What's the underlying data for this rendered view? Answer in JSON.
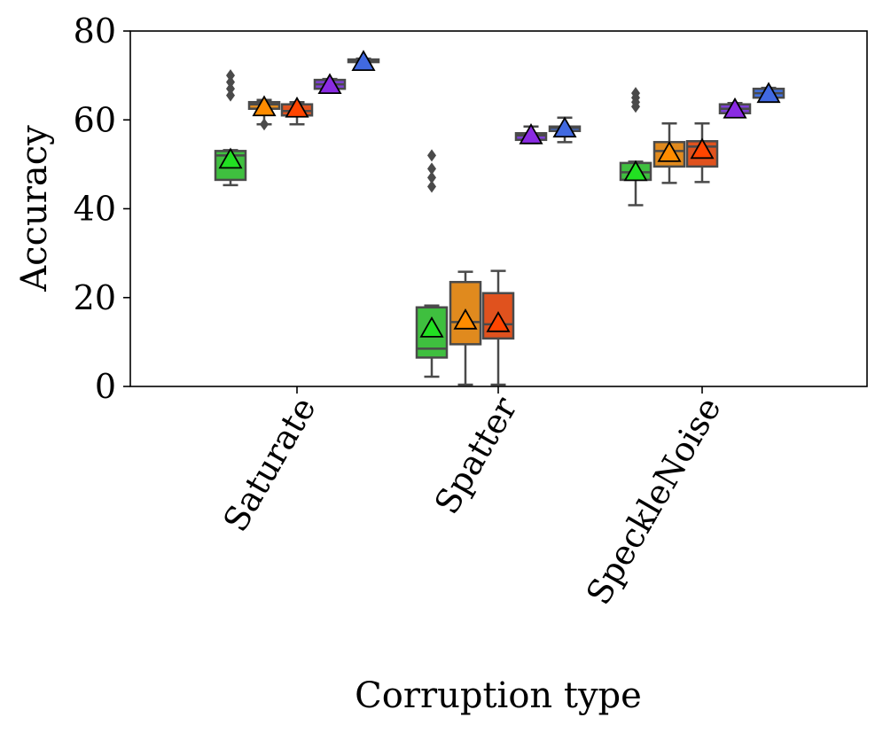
{
  "chart_data": {
    "type": "box",
    "title": "",
    "xlabel": "Corruption type",
    "ylabel": "Accuracy",
    "ylim": [
      0,
      80
    ],
    "yticks": [
      0,
      20,
      40,
      60,
      80
    ],
    "categories": [
      "Saturate",
      "Spatter",
      "SpeckleNoise"
    ],
    "series": [
      {
        "name": "green",
        "color": "#3fbf3f",
        "mean_color": "#22e022",
        "boxes": [
          {
            "category": "Saturate",
            "whislo": 45.3,
            "q1": 46.5,
            "med": 52.0,
            "q3": 53.0,
            "whishi": 53.2,
            "mean": 51.0,
            "fliers": [
              65.5,
              67.0,
              68.5,
              70.0
            ]
          },
          {
            "category": "Spatter",
            "whislo": 2.2,
            "q1": 6.5,
            "med": 8.5,
            "q3": 17.8,
            "whishi": 18.2,
            "mean": 13.0,
            "fliers": [
              45.0,
              47.0,
              49.0,
              52.0
            ]
          },
          {
            "category": "SpeckleNoise",
            "whislo": 40.8,
            "q1": 46.5,
            "med": 48.2,
            "q3": 50.3,
            "whishi": 50.6,
            "mean": 48.2,
            "fliers": [
              63.0,
              64.0,
              65.0,
              66.0
            ]
          }
        ]
      },
      {
        "name": "orange",
        "color": "#e08a1e",
        "mean_color": "#ff8c00",
        "boxes": [
          {
            "category": "Saturate",
            "whislo": 59.0,
            "q1": 62.5,
            "med": 63.5,
            "q3": 64.0,
            "whishi": 64.5,
            "mean": 62.8,
            "fliers": [
              59.0
            ]
          },
          {
            "category": "Spatter",
            "whislo": 0.4,
            "q1": 9.5,
            "med": 14.5,
            "q3": 23.5,
            "whishi": 25.8,
            "mean": 14.8,
            "fliers": []
          },
          {
            "category": "SpeckleNoise",
            "whislo": 45.8,
            "q1": 49.5,
            "med": 53.0,
            "q3": 55.0,
            "whishi": 59.2,
            "mean": 52.5,
            "fliers": []
          }
        ]
      },
      {
        "name": "red-orange",
        "color": "#e0521e",
        "mean_color": "#ff4500",
        "boxes": [
          {
            "category": "Saturate",
            "whislo": 59.0,
            "q1": 61.0,
            "med": 62.0,
            "q3": 63.5,
            "whishi": 64.0,
            "mean": 62.5,
            "fliers": []
          },
          {
            "category": "Spatter",
            "whislo": 0.4,
            "q1": 10.8,
            "med": 14.0,
            "q3": 21.0,
            "whishi": 26.0,
            "mean": 14.2,
            "fliers": []
          },
          {
            "category": "SpeckleNoise",
            "whislo": 46.0,
            "q1": 49.5,
            "med": 54.0,
            "q3": 55.2,
            "whishi": 59.2,
            "mean": 53.2,
            "fliers": []
          }
        ]
      },
      {
        "name": "purple",
        "color": "#7e3fd6",
        "mean_color": "#8a2be2",
        "boxes": [
          {
            "category": "Saturate",
            "whislo": 66.5,
            "q1": 67.0,
            "med": 68.0,
            "q3": 69.0,
            "whishi": 69.2,
            "mean": 67.8,
            "fliers": []
          },
          {
            "category": "Spatter",
            "whislo": 54.8,
            "q1": 55.5,
            "med": 56.5,
            "q3": 57.0,
            "whishi": 58.5,
            "mean": 56.5,
            "fliers": []
          },
          {
            "category": "SpeckleNoise",
            "whislo": 61.0,
            "q1": 61.5,
            "med": 62.5,
            "q3": 63.5,
            "whishi": 63.8,
            "mean": 62.3,
            "fliers": []
          }
        ]
      },
      {
        "name": "blue",
        "color": "#3f6fe0",
        "mean_color": "#4169e1",
        "boxes": [
          {
            "category": "Saturate",
            "whislo": 72.8,
            "q1": 73.0,
            "med": 73.3,
            "q3": 73.6,
            "whishi": 73.8,
            "mean": 73.0,
            "fliers": []
          },
          {
            "category": "Spatter",
            "whislo": 55.0,
            "q1": 57.5,
            "med": 58.2,
            "q3": 58.5,
            "whishi": 60.5,
            "mean": 58.0,
            "fliers": []
          },
          {
            "category": "SpeckleNoise",
            "whislo": 64.5,
            "q1": 65.0,
            "med": 66.0,
            "q3": 67.0,
            "whishi": 67.2,
            "mean": 65.8,
            "fliers": []
          }
        ]
      }
    ]
  }
}
